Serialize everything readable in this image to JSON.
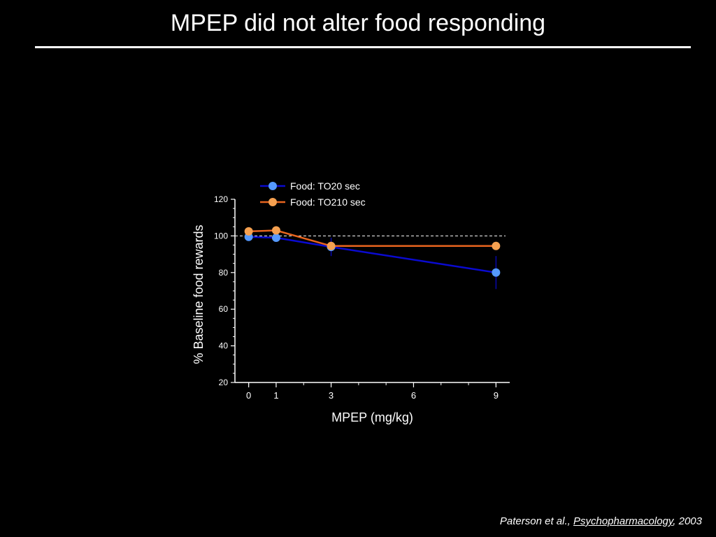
{
  "slide": {
    "title": "MPEP did not alter food responding"
  },
  "citation": {
    "authors": "Paterson et al., ",
    "journal": "Psychopharmacology",
    "year": ", 2003"
  },
  "chart_data": {
    "type": "line",
    "xlabel": "MPEP (mg/kg)",
    "ylabel": "% Baseline food rewards",
    "x": [
      0,
      1,
      3,
      9
    ],
    "xticks": [
      0,
      1,
      3,
      6,
      9
    ],
    "xlim": [
      -0.5,
      9.5
    ],
    "ylim": [
      20,
      120
    ],
    "yticks": [
      20,
      40,
      60,
      80,
      100,
      120
    ],
    "reference_line": 100,
    "legend_position": "top",
    "series": [
      {
        "name": "Food: TO20 sec",
        "color": "#0a0ad0",
        "marker_color": "#5599ff",
        "values": [
          99.5,
          99,
          94,
          80
        ],
        "error": [
          1,
          1,
          5,
          9
        ]
      },
      {
        "name": "Food: TO210 sec",
        "color": "#e8641e",
        "marker_color": "#f5a050",
        "values": [
          102.5,
          103,
          94.5,
          94.5
        ],
        "error": [
          1,
          1,
          2,
          2
        ]
      }
    ]
  }
}
